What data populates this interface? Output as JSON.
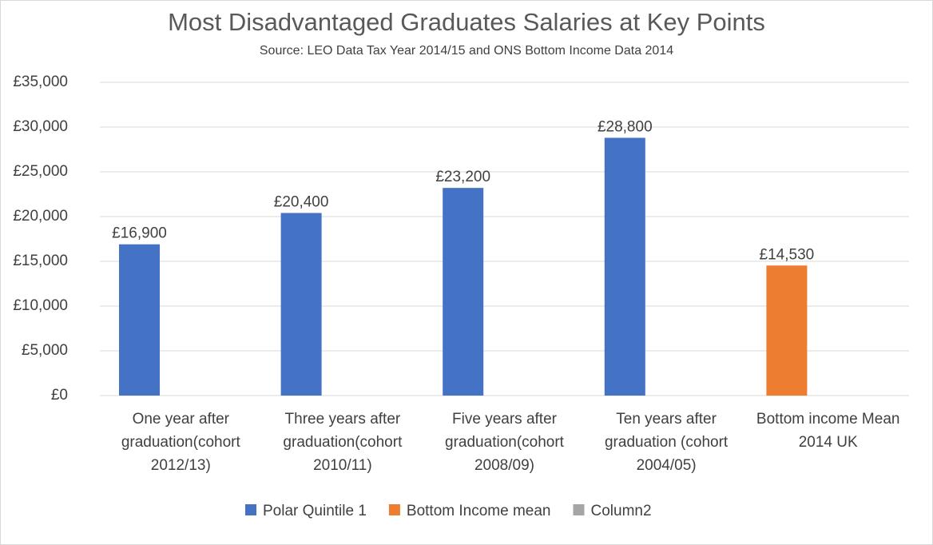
{
  "chart_data": {
    "type": "bar",
    "title": "Most Disadvantaged Graduates Salaries at Key Points",
    "subtitle": "Source: LEO Data Tax Year 2014/15 and ONS Bottom Income Data 2014",
    "categories": [
      "One year after graduation(cohort 2012/13)",
      "Three years after graduation(cohort 2010/11)",
      "Five years after graduation(cohort 2008/09)",
      "Ten years after graduation (cohort 2004/05)",
      "Bottom income Mean 2014 UK"
    ],
    "series": [
      {
        "name": "Polar Quintile 1",
        "color": "#4472c4",
        "values": [
          16900,
          20400,
          23200,
          28800,
          null
        ],
        "value_labels": [
          "£16,900",
          "£20,400",
          "£23,200",
          "£28,800",
          null
        ]
      },
      {
        "name": "Bottom Income mean",
        "color": "#ed7d31",
        "values": [
          null,
          null,
          null,
          null,
          14530
        ],
        "value_labels": [
          null,
          null,
          null,
          null,
          "£14,530"
        ]
      },
      {
        "name": "Column2",
        "color": "#a5a5a5",
        "values": [
          null,
          null,
          null,
          null,
          null
        ]
      }
    ],
    "ylim": [
      0,
      35000
    ],
    "yticks": [
      {
        "value": 0,
        "label": "£0"
      },
      {
        "value": 5000,
        "label": "£5,000"
      },
      {
        "value": 10000,
        "label": "£10,000"
      },
      {
        "value": 15000,
        "label": "£15,000"
      },
      {
        "value": 20000,
        "label": "£20,000"
      },
      {
        "value": 25000,
        "label": "£25,000"
      },
      {
        "value": 30000,
        "label": "£30,000"
      },
      {
        "value": 35000,
        "label": "£35,000"
      }
    ],
    "grid": true,
    "legend": "bottom"
  }
}
